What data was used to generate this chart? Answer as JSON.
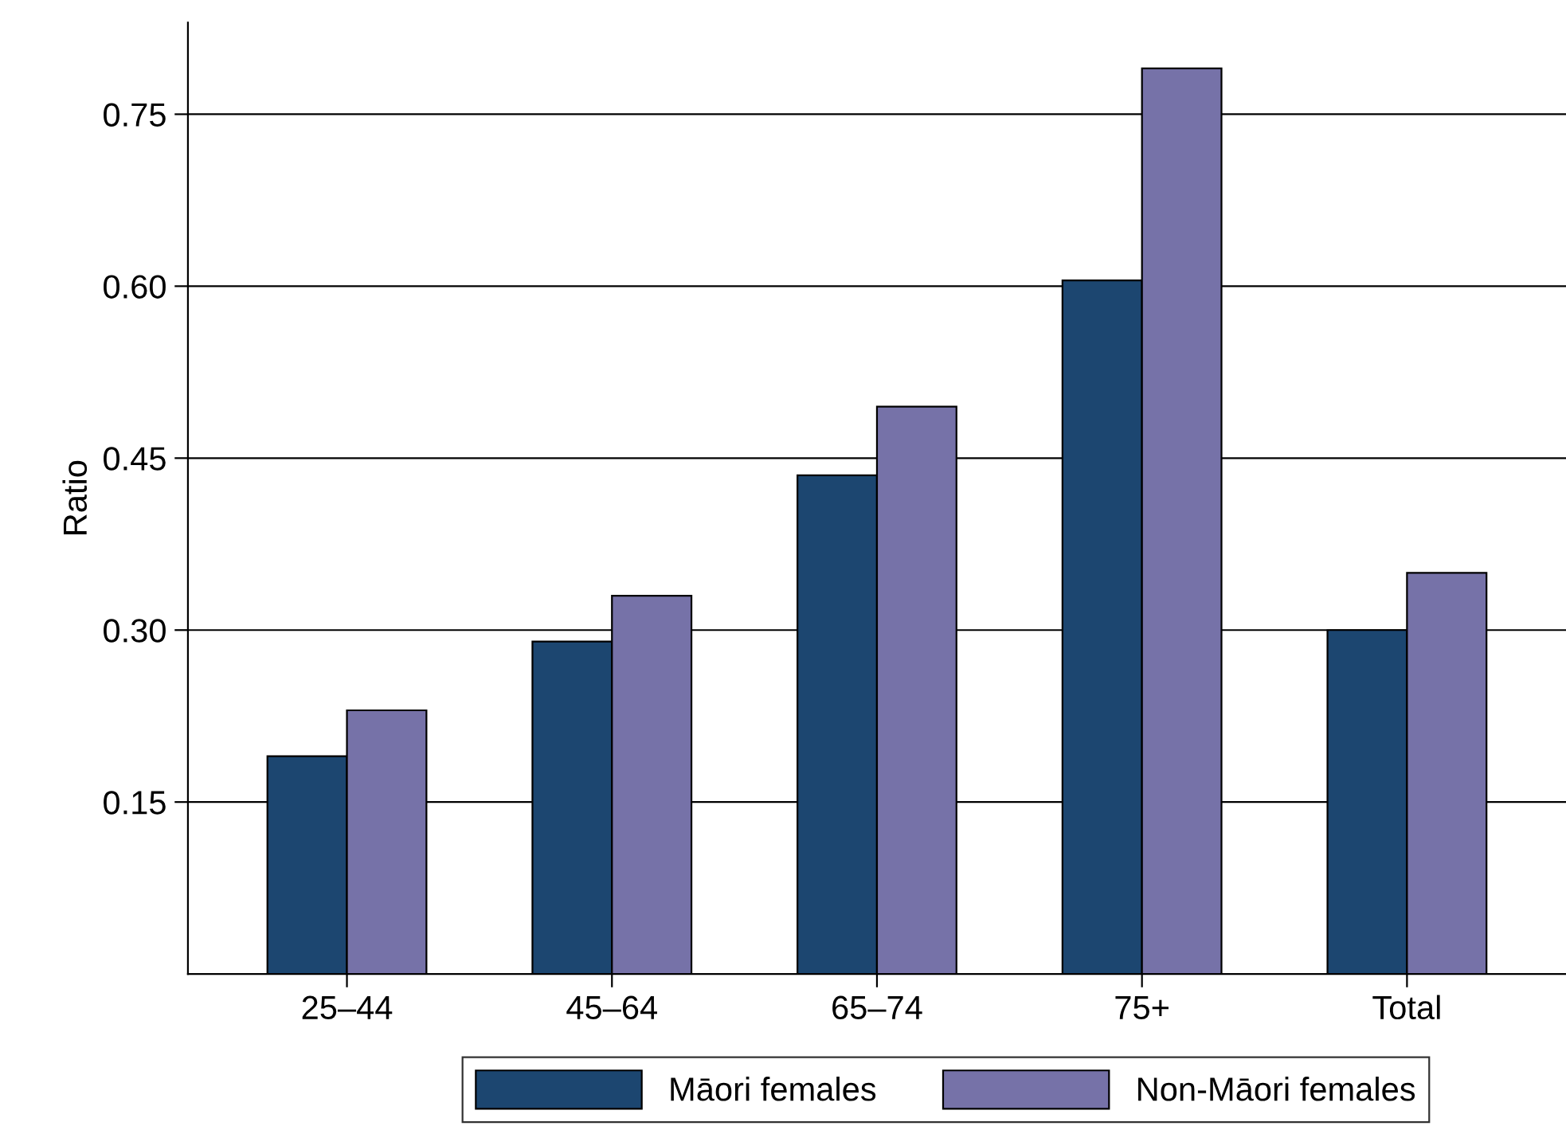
{
  "chart_data": {
    "type": "bar",
    "ylabel": "Ratio",
    "categories": [
      "25–44",
      "45–64",
      "65–74",
      "75+",
      "Total"
    ],
    "series": [
      {
        "name": "Māori females",
        "color": "#1c4670",
        "values": [
          0.19,
          0.29,
          0.435,
          0.605,
          0.3
        ]
      },
      {
        "name": "Non-Māori females",
        "color": "#7672a8",
        "values": [
          0.23,
          0.33,
          0.495,
          0.79,
          0.35
        ]
      }
    ],
    "ylim": [
      0,
      0.83
    ],
    "yticks": [
      0.15,
      {
        "value": 0.3,
        "label": "0.30"
      },
      0.45,
      {
        "value": 0.6,
        "label": "0.60"
      },
      0.75
    ],
    "grid": "y",
    "legend": "bottom"
  }
}
